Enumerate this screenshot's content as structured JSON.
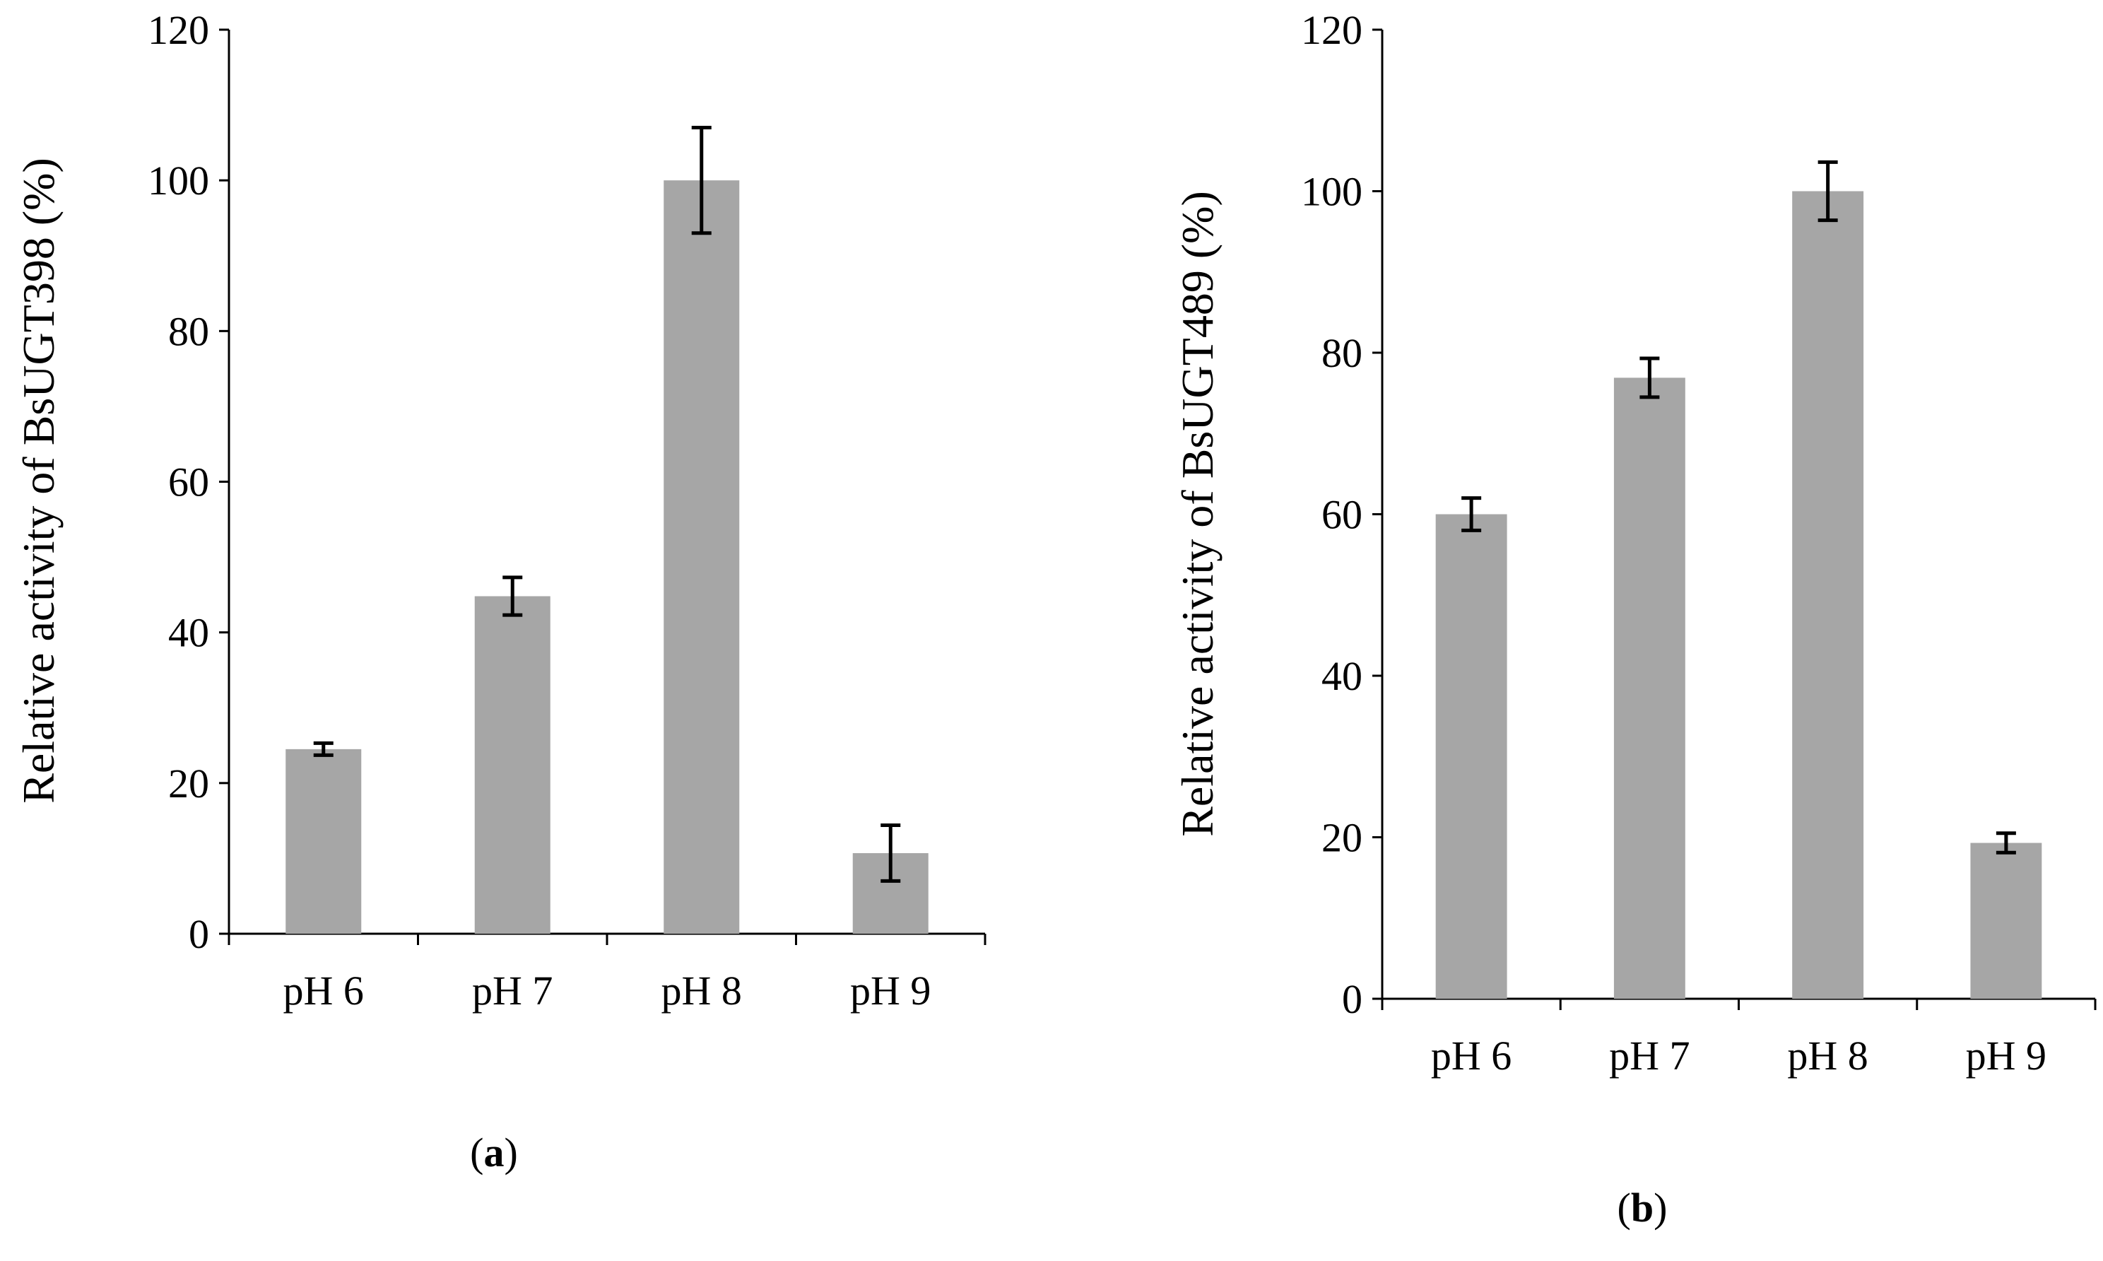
{
  "colors": {
    "bar": "#a6a6a6",
    "axis": "#000000",
    "error": "#000000"
  },
  "chart_data": [
    {
      "type": "bar",
      "panel_label": "a",
      "title": "",
      "xlabel": "",
      "ylabel": "Relative activity of BsUGT398 (%)",
      "categories": [
        "pH 6",
        "pH 7",
        "pH 8",
        "pH 9"
      ],
      "values": [
        24.5,
        44.8,
        100,
        10.7
      ],
      "errors": [
        0.8,
        2.5,
        7.0,
        3.7
      ],
      "ylim": [
        0,
        120
      ],
      "yticks": [
        "0",
        "20",
        "40",
        "60",
        "80",
        "100",
        "120"
      ],
      "grid": false
    },
    {
      "type": "bar",
      "panel_label": "b",
      "title": "",
      "xlabel": "",
      "ylabel": "Relative activity of BsUGT489 (%)",
      "categories": [
        "pH 6",
        "pH 7",
        "pH 8",
        "pH 9"
      ],
      "values": [
        60,
        76.9,
        100,
        19.3
      ],
      "errors": [
        2.0,
        2.4,
        3.6,
        1.2
      ],
      "ylim": [
        0,
        120
      ],
      "yticks": [
        "0",
        "20",
        "40",
        "60",
        "80",
        "100",
        "120"
      ],
      "grid": false
    }
  ]
}
